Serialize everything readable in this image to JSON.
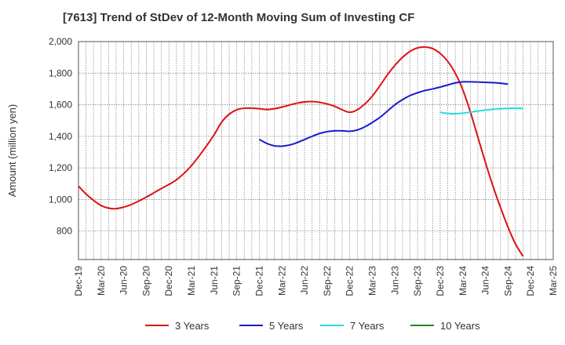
{
  "chart_data": {
    "type": "line",
    "title": "[7613]  Trend of StDev of 12-Month Moving Sum of Investing CF",
    "ylabel": "Amount (million yen)",
    "xlabel": "",
    "ylim": [
      620,
      2000
    ],
    "yticks": [
      800,
      1000,
      1200,
      1400,
      1600,
      1800,
      2000
    ],
    "ytick_labels": [
      "800",
      "1,000",
      "1,200",
      "1,400",
      "1,600",
      "1,800",
      "2,000"
    ],
    "x_tick_labels": [
      "Dec-19",
      "Mar-20",
      "Jun-20",
      "Sep-20",
      "Dec-20",
      "Mar-21",
      "Jun-21",
      "Sep-21",
      "Dec-21",
      "Mar-22",
      "Jun-22",
      "Sep-22",
      "Dec-22",
      "Mar-23",
      "Jun-23",
      "Sep-23",
      "Dec-23",
      "Mar-24",
      "Jun-24",
      "Sep-24",
      "Dec-24",
      "Mar-25"
    ],
    "x_start": "2019-12",
    "grid": true,
    "legend_position": "bottom",
    "series": [
      {
        "name": "3 Years",
        "color": "#dd1111",
        "start": "2019-12",
        "values": [
          1085,
          1035,
          995,
          962,
          945,
          942,
          952,
          968,
          990,
          1015,
          1042,
          1070,
          1095,
          1125,
          1165,
          1215,
          1275,
          1340,
          1410,
          1490,
          1540,
          1568,
          1578,
          1578,
          1575,
          1570,
          1575,
          1585,
          1598,
          1610,
          1618,
          1620,
          1615,
          1605,
          1590,
          1568,
          1552,
          1568,
          1605,
          1655,
          1720,
          1790,
          1850,
          1900,
          1938,
          1960,
          1965,
          1955,
          1925,
          1875,
          1800,
          1695,
          1555,
          1395,
          1235,
          1085,
          950,
          825,
          718,
          640
        ]
      },
      {
        "name": "5 Years",
        "color": "#1a1acc",
        "start": "2021-12",
        "values": [
          1380,
          1355,
          1340,
          1338,
          1345,
          1360,
          1380,
          1400,
          1418,
          1430,
          1435,
          1435,
          1432,
          1440,
          1460,
          1488,
          1520,
          1560,
          1600,
          1632,
          1658,
          1676,
          1690,
          1700,
          1712,
          1725,
          1738,
          1745,
          1745,
          1744,
          1742,
          1740,
          1736,
          1730
        ]
      },
      {
        "name": "7 Years",
        "color": "#22dddd",
        "start": "2023-12",
        "values": [
          1552,
          1545,
          1543,
          1547,
          1553,
          1560,
          1566,
          1571,
          1575,
          1577,
          1578,
          1576
        ]
      },
      {
        "name": "10 Years",
        "color": "#228822",
        "start": "2024-12",
        "values": []
      }
    ]
  }
}
